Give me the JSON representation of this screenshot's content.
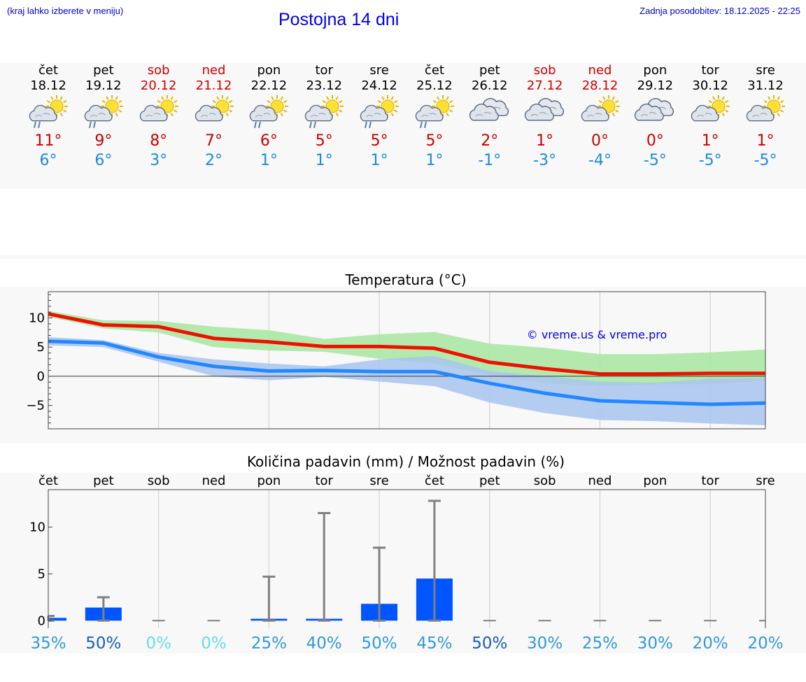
{
  "header": {
    "note": "(kraj lahko izberete v meniju)",
    "title": "Postojna 14 dni",
    "updated": "Zadnja posodobitev: 18.12.2025 - 22:25"
  },
  "days": [
    {
      "name": "čet",
      "date": "18.12",
      "weekend": false,
      "icon": "partly-cloudy-rain-icon",
      "tmax": "11°",
      "tmin": "6°",
      "precip_name": "čet",
      "chance": "35%",
      "chance_color": "#3399dd"
    },
    {
      "name": "pet",
      "date": "19.12",
      "weekend": false,
      "icon": "partly-cloudy-rain-icon",
      "tmax": "9°",
      "tmin": "6°",
      "precip_name": "pet",
      "chance": "50%",
      "chance_color": "#1a5fb4"
    },
    {
      "name": "sob",
      "date": "20.12",
      "weekend": true,
      "icon": "partly-cloudy-icon",
      "tmax": "8°",
      "tmin": "3°",
      "precip_name": "sob",
      "chance": "0%",
      "chance_color": "#66ddee"
    },
    {
      "name": "ned",
      "date": "21.12",
      "weekend": true,
      "icon": "partly-cloudy-icon",
      "tmax": "7°",
      "tmin": "2°",
      "precip_name": "ned",
      "chance": "0%",
      "chance_color": "#66ddee"
    },
    {
      "name": "pon",
      "date": "22.12",
      "weekend": false,
      "icon": "partly-cloudy-rain-icon",
      "tmax": "6°",
      "tmin": "1°",
      "precip_name": "pon",
      "chance": "25%",
      "chance_color": "#3399dd"
    },
    {
      "name": "tor",
      "date": "23.12",
      "weekend": false,
      "icon": "partly-cloudy-rain-icon",
      "tmax": "5°",
      "tmin": "1°",
      "precip_name": "tor",
      "chance": "40%",
      "chance_color": "#3399dd"
    },
    {
      "name": "sre",
      "date": "24.12",
      "weekend": false,
      "icon": "partly-cloudy-rain-icon",
      "tmax": "5°",
      "tmin": "1°",
      "precip_name": "sre",
      "chance": "50%",
      "chance_color": "#3399dd"
    },
    {
      "name": "čet",
      "date": "25.12",
      "weekend": false,
      "icon": "partly-cloudy-rain-icon",
      "tmax": "5°",
      "tmin": "1°",
      "precip_name": "čet",
      "chance": "45%",
      "chance_color": "#3399dd"
    },
    {
      "name": "pet",
      "date": "26.12",
      "weekend": false,
      "icon": "cloudy-icon",
      "tmax": "2°",
      "tmin": "-1°",
      "precip_name": "pet",
      "chance": "50%",
      "chance_color": "#1a5fb4"
    },
    {
      "name": "sob",
      "date": "27.12",
      "weekend": true,
      "icon": "cloudy-icon",
      "tmax": "1°",
      "tmin": "-3°",
      "precip_name": "sob",
      "chance": "30%",
      "chance_color": "#3399dd"
    },
    {
      "name": "ned",
      "date": "28.12",
      "weekend": true,
      "icon": "partly-cloudy-icon",
      "tmax": "0°",
      "tmin": "-4°",
      "precip_name": "ned",
      "chance": "25%",
      "chance_color": "#3399dd"
    },
    {
      "name": "pon",
      "date": "29.12",
      "weekend": false,
      "icon": "cloudy-icon",
      "tmax": "0°",
      "tmin": "-5°",
      "precip_name": "pon",
      "chance": "30%",
      "chance_color": "#3399dd"
    },
    {
      "name": "tor",
      "date": "30.12",
      "weekend": false,
      "icon": "partly-cloudy-icon",
      "tmax": "1°",
      "tmin": "-5°",
      "precip_name": "tor",
      "chance": "20%",
      "chance_color": "#3399dd"
    },
    {
      "name": "sre",
      "date": "31.12",
      "weekend": false,
      "icon": "partly-cloudy-icon",
      "tmax": "1°",
      "tmin": "-5°",
      "precip_name": "sre",
      "chance": "20%",
      "chance_color": "#3399dd"
    }
  ],
  "chart_data": [
    {
      "type": "line",
      "title": "Temperatura (°C)",
      "watermark": "© vreme.us & vreme.pro",
      "xlabel": "",
      "ylabel": "",
      "x": [
        0,
        1,
        2,
        3,
        4,
        5,
        6,
        7,
        8,
        9,
        10,
        11,
        12,
        13
      ],
      "ylim": [
        -9,
        14.5
      ],
      "yticks": [
        10,
        5,
        0,
        -5
      ],
      "ytick_labels": [
        "10",
        "5",
        "0",
        "−5"
      ],
      "series": [
        {
          "name": "max",
          "color": "#ee1100",
          "values": [
            10.7,
            8.8,
            8.5,
            6.5,
            5.9,
            5.1,
            5.1,
            4.8,
            2.4,
            1.3,
            0.4,
            0.4,
            0.5,
            0.5
          ]
        },
        {
          "name": "min",
          "color": "#2288ff",
          "values": [
            6.0,
            5.7,
            3.3,
            1.7,
            0.9,
            1.0,
            0.8,
            0.8,
            -1.2,
            -2.9,
            -4.2,
            -4.5,
            -4.8,
            -4.6
          ]
        }
      ],
      "bands": [
        {
          "name": "max-range",
          "color": "#a8e6a0",
          "upper": [
            11.2,
            9.6,
            9.5,
            8.5,
            7.9,
            6.4,
            7.2,
            7.6,
            5.6,
            4.9,
            3.8,
            3.8,
            4.1,
            4.6
          ],
          "lower": [
            10.2,
            8.2,
            7.5,
            5.0,
            4.4,
            4.2,
            3.0,
            2.2,
            0.2,
            -1.2,
            -1.7,
            -1.4,
            -1.4,
            -0.7
          ]
        },
        {
          "name": "min-range",
          "color": "#a9c4f0",
          "upper": [
            6.7,
            6.2,
            4.0,
            2.9,
            2.2,
            1.7,
            2.9,
            3.5,
            0.9,
            0.0,
            -0.9,
            -1.1,
            -0.4,
            -0.3
          ],
          "lower": [
            5.3,
            5.0,
            2.5,
            0.0,
            -0.7,
            -0.1,
            -0.9,
            -1.7,
            -4.5,
            -6.3,
            -7.5,
            -7.7,
            -8.1,
            -8.4
          ]
        }
      ]
    },
    {
      "type": "bar",
      "title": "Količina padavin (mm) / Možnost padavin (%)",
      "xlabel": "",
      "ylabel": "",
      "categories": [
        "čet",
        "pet",
        "sob",
        "ned",
        "pon",
        "tor",
        "sre",
        "čet",
        "pet",
        "sob",
        "ned",
        "pon",
        "tor",
        "sre"
      ],
      "ylim": [
        -0.8,
        14
      ],
      "yticks": [
        10,
        5,
        0
      ],
      "ytick_labels": [
        "10",
        "5",
        "0"
      ],
      "bar_color": "#0055ff",
      "values": [
        0.3,
        1.4,
        0,
        0,
        0.2,
        0.2,
        1.8,
        4.5,
        0,
        0,
        0,
        0,
        0,
        0
      ],
      "error_upper": [
        0.5,
        2.5,
        0,
        0,
        4.7,
        11.5,
        7.8,
        12.8,
        0,
        0,
        0,
        0,
        0,
        0
      ],
      "error_lower": [
        0,
        0,
        0,
        0,
        0,
        0,
        0,
        0,
        0,
        0,
        0,
        0,
        0,
        0
      ],
      "chance": [
        "35%",
        "50%",
        "0%",
        "0%",
        "25%",
        "40%",
        "50%",
        "45%",
        "50%",
        "30%",
        "25%",
        "30%",
        "20%",
        "20%"
      ]
    }
  ]
}
